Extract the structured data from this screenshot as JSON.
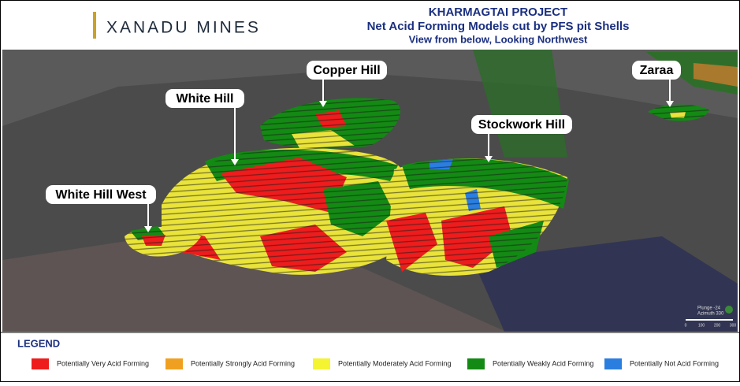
{
  "header": {
    "logo": "XANADU MINES",
    "title": "KHARMAGTAI PROJECT",
    "subtitle": "Net Acid Forming Models cut by PFS pit Shells",
    "view": "View from below, Looking Northwest"
  },
  "labels": [
    "Copper Hill",
    "White Hill",
    "White Hill West",
    "Stockwork Hill",
    "Zaraa"
  ],
  "orientation": {
    "plunge": "Plunge -24",
    "azimuth": "Azimuth 330",
    "scale": [
      "0",
      "100",
      "200",
      "300"
    ]
  },
  "legend": {
    "title": "LEGEND",
    "items": [
      {
        "label": "Potentially Very Acid Forming",
        "color": "#ee1c1c"
      },
      {
        "label": "Potentially Strongly Acid Forming",
        "color": "#f0a020"
      },
      {
        "label": "Potentially Moderately Acid Forming",
        "color": "#f4f430"
      },
      {
        "label": "Potentially Weakly Acid Forming",
        "color": "#138a13"
      },
      {
        "label": "Potentially Not Acid Forming",
        "color": "#2a7ee0"
      }
    ]
  }
}
